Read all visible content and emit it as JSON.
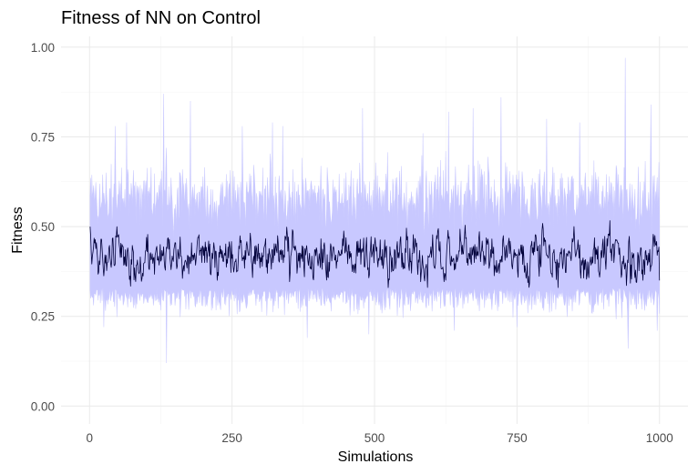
{
  "chart_data": {
    "type": "line",
    "title": "Fitness of NN on Control",
    "xlabel": "Simulations",
    "ylabel": "Fitness",
    "xlim": [
      -50,
      1050
    ],
    "ylim": [
      -0.05,
      1.03
    ],
    "x_ticks": [
      0,
      250,
      500,
      750,
      1000
    ],
    "x_tick_labels": [
      "0",
      "250",
      "500",
      "750",
      "1000"
    ],
    "y_ticks": [
      0.0,
      0.25,
      0.5,
      0.75,
      1.0
    ],
    "y_tick_labels": [
      "0.00",
      "0.25",
      "0.50",
      "0.75",
      "1.00"
    ],
    "grid": true,
    "legend": "none",
    "series": [
      {
        "kind": "ribbon",
        "color": "#c8c8ff",
        "x_range": [
          1,
          1000
        ],
        "n_points": 1000,
        "center_mean": 0.42,
        "lower_typical": 0.33,
        "upper_typical": 0.58,
        "min_value": 0.12,
        "max_value": 0.97,
        "upper_peaks": [
          {
            "x": 45,
            "y": 0.78
          },
          {
            "x": 65,
            "y": 0.79
          },
          {
            "x": 130,
            "y": 0.87
          },
          {
            "x": 177,
            "y": 0.85
          },
          {
            "x": 268,
            "y": 0.78
          },
          {
            "x": 321,
            "y": 0.79
          },
          {
            "x": 339,
            "y": 0.78
          },
          {
            "x": 479,
            "y": 0.83
          },
          {
            "x": 585,
            "y": 0.76
          },
          {
            "x": 630,
            "y": 0.82
          },
          {
            "x": 673,
            "y": 0.83
          },
          {
            "x": 722,
            "y": 0.86
          },
          {
            "x": 802,
            "y": 0.8
          },
          {
            "x": 860,
            "y": 0.79
          },
          {
            "x": 940,
            "y": 0.97
          },
          {
            "x": 985,
            "y": 0.84
          }
        ],
        "lower_dips": [
          {
            "x": 25,
            "y": 0.22
          },
          {
            "x": 135,
            "y": 0.12
          },
          {
            "x": 382,
            "y": 0.19
          },
          {
            "x": 490,
            "y": 0.2
          },
          {
            "x": 640,
            "y": 0.21
          },
          {
            "x": 750,
            "y": 0.22
          },
          {
            "x": 945,
            "y": 0.16
          },
          {
            "x": 996,
            "y": 0.21
          }
        ]
      },
      {
        "kind": "line",
        "color": "#00003a",
        "x_range": [
          1,
          1000
        ],
        "n_points": 1000,
        "mean": 0.42,
        "typical_range": [
          0.36,
          0.48
        ],
        "start_value": 0.5,
        "max_value": 0.55,
        "min_value": 0.33,
        "end_value": 0.35
      }
    ]
  }
}
